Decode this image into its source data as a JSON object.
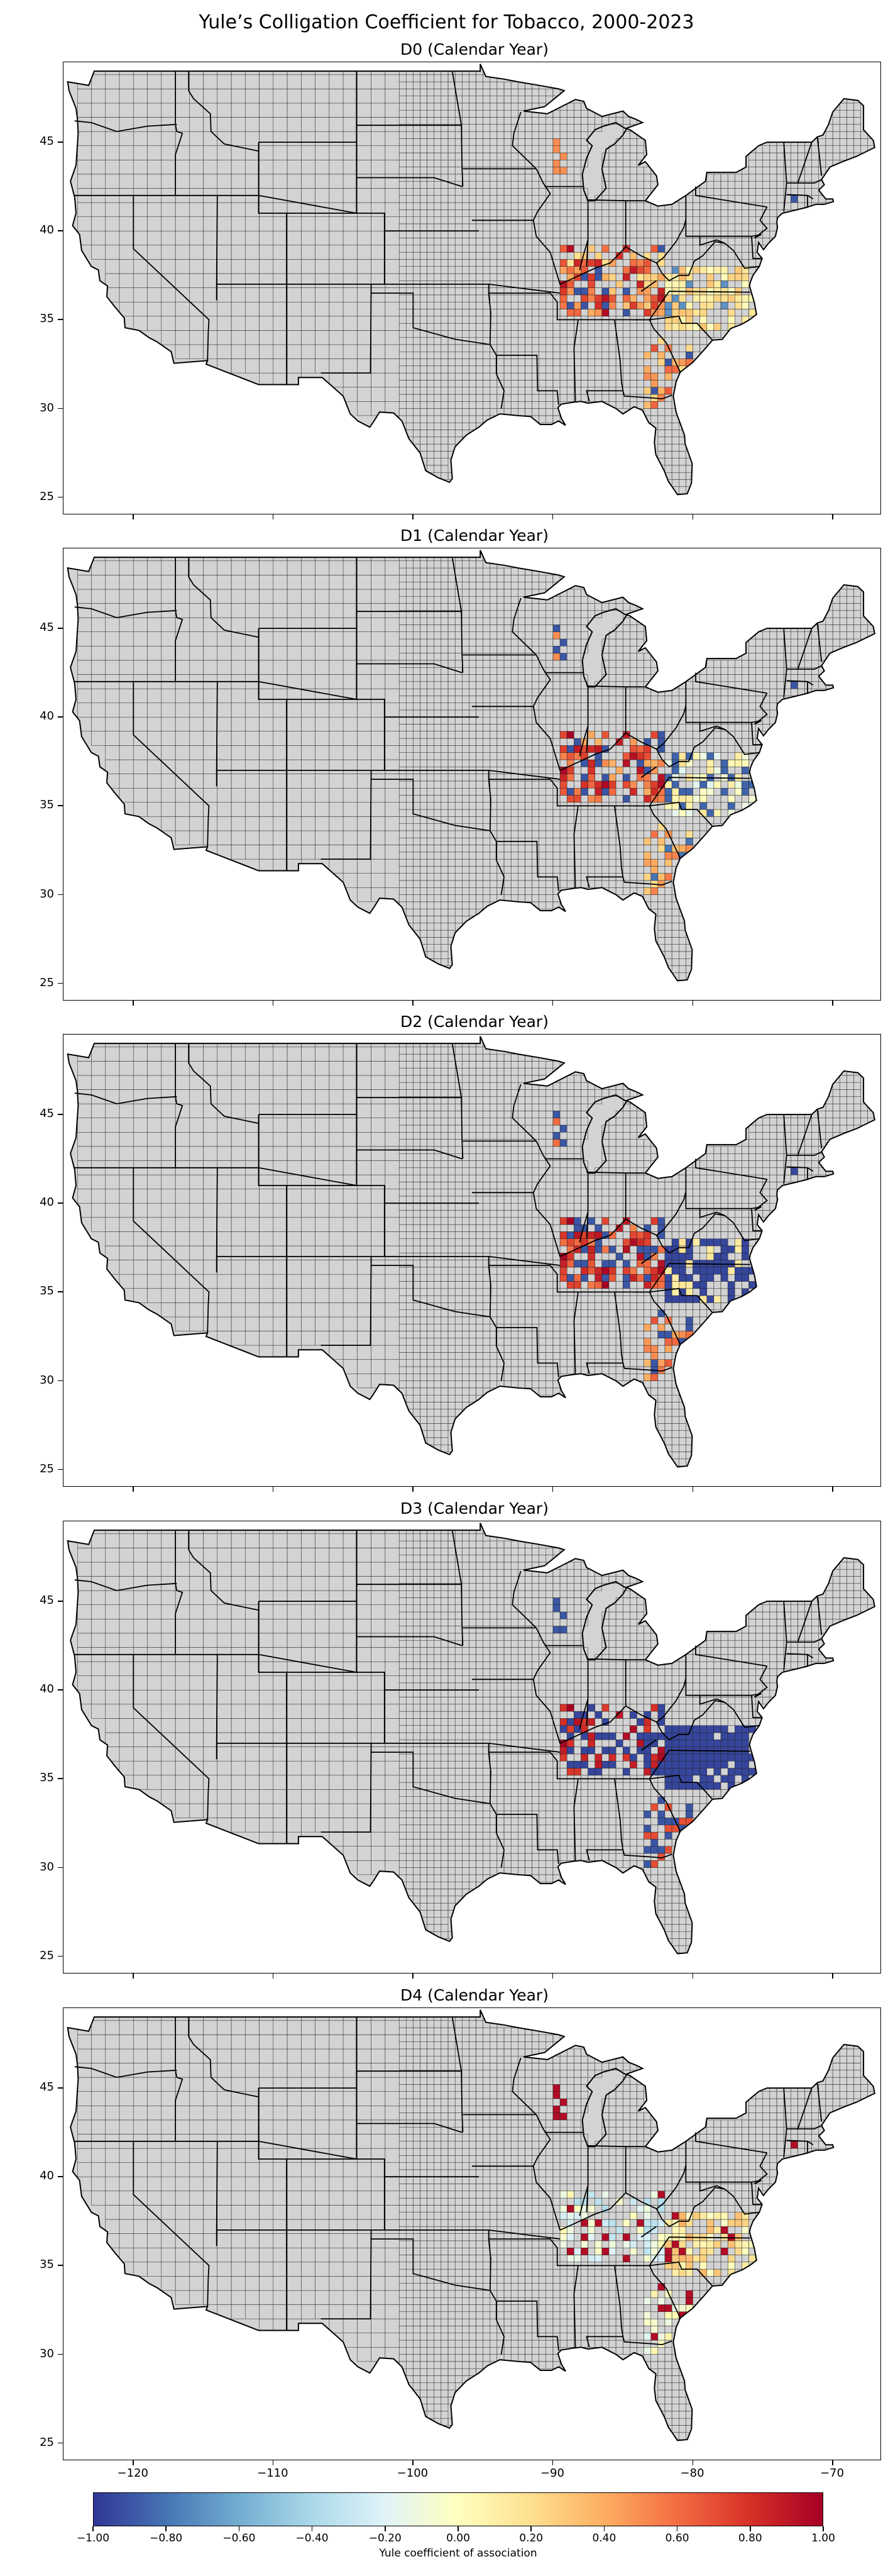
{
  "title": "Yule’s Colligation Coefficient for Tobacco, 2000-2023",
  "panels": [
    {
      "label": "D0 (Calendar Year)",
      "pattern": "d0"
    },
    {
      "label": "D1 (Calendar Year)",
      "pattern": "d1"
    },
    {
      "label": "D2 (Calendar Year)",
      "pattern": "d2"
    },
    {
      "label": "D3 (Calendar Year)",
      "pattern": "d3"
    },
    {
      "label": "D4 (Calendar Year)",
      "pattern": "d4"
    }
  ],
  "y_ticks": [
    "45",
    "40",
    "35",
    "30",
    "25"
  ],
  "x_ticks": [
    "−120",
    "−110",
    "−100",
    "−90",
    "−80",
    "−70"
  ],
  "colorbar": {
    "ticks": [
      "−1.00",
      "−0.80",
      "−0.60",
      "−0.40",
      "−0.20",
      "0.00",
      "0.20",
      "0.40",
      "0.60",
      "0.80",
      "1.00"
    ],
    "label": "Yule coefficient of association",
    "range": [
      -1,
      1
    ],
    "colors": [
      "#313695",
      "#4575b4",
      "#74add1",
      "#abd9e9",
      "#e0f3f8",
      "#ffffbf",
      "#fee090",
      "#fdae61",
      "#f46d43",
      "#d73027",
      "#a50026"
    ]
  },
  "map": {
    "land_color": "#d3d3d3",
    "lon_range": [
      -125,
      -66.5
    ],
    "lat_range": [
      24,
      49.5
    ]
  }
}
